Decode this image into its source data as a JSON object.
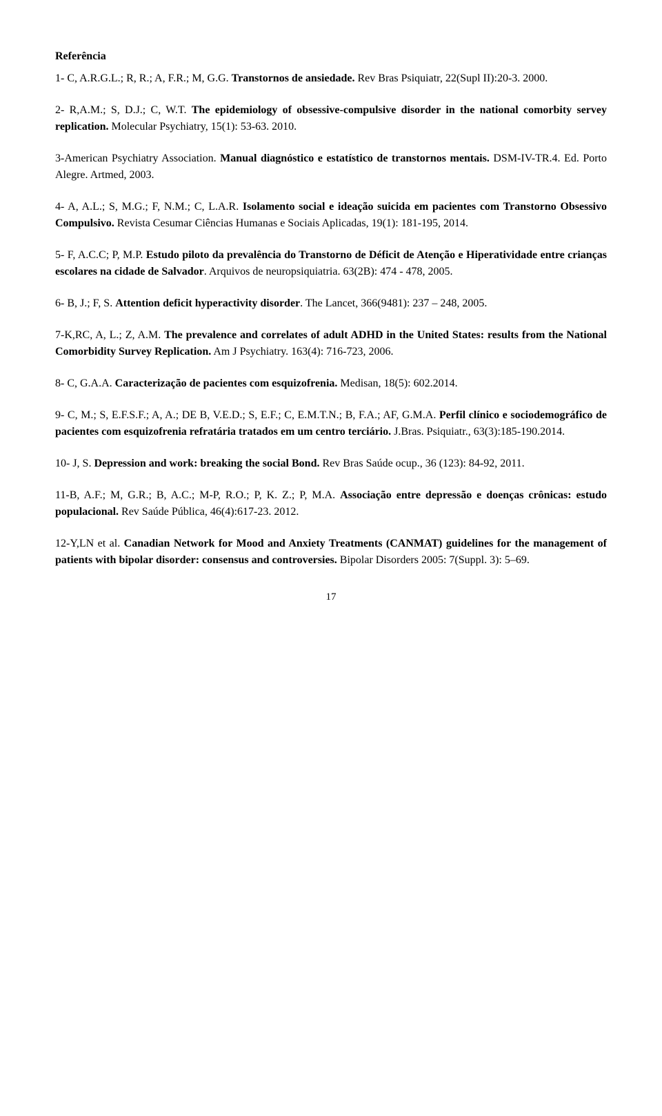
{
  "heading": "Referência",
  "refs": [
    {
      "pre": "1- C, A.R.G.L.; R, R.; A, F.R.; M, G.G. ",
      "title": "Transtornos de ansiedade. ",
      "post": "Rev Bras Psiquiatr, 22(Supl II):20-3. 2000."
    },
    {
      "pre": "2- R,A.M.; S, D.J.; C, W.T. ",
      "title": "The epidemiology of obsessive-compulsive disorder in the national comorbity servey replication. ",
      "post": "Molecular Psychiatry, 15(1): 53-63. 2010."
    },
    {
      "pre": "3-American Psychiatry Association. ",
      "title": "Manual diagnóstico e estatístico de transtornos mentais. ",
      "post": "DSM-IV-TR.4. Ed. Porto Alegre. Artmed, 2003."
    },
    {
      "pre": "4- A, A.L.; S, M.G.; F, N.M.; C, L.A.R. ",
      "title": "Isolamento social e ideação suicida em pacientes com Transtorno Obsessivo Compulsivo. ",
      "post": "Revista Cesumar Ciências Humanas e Sociais Aplicadas, 19(1): 181-195, 2014."
    },
    {
      "pre": "5- F, A.C.C; P, M.P. ",
      "title": "Estudo piloto da prevalência do Transtorno de Déficit de Atenção e Hiperatividade entre crianças escolares na cidade de Salvador",
      "post": ". Arquivos de neuropsiquiatria. 63(2B): 474 - 478, 2005."
    },
    {
      "pre": "6- B, J.; F, S. ",
      "title": "Attention deficit hyperactivity disorder",
      "post": ". The Lancet, 366(9481): 237 – 248, 2005."
    },
    {
      "pre": "7-K,RC, A, L.; Z, A.M. ",
      "title": "The prevalence and correlates of adult ADHD in the United States: results from the National Comorbidity Survey Replication.",
      "post": " Am J Psychiatry. 163(4): 716-723, 2006."
    },
    {
      "pre": "8- C, G.A.A. ",
      "title": "Caracterização de pacientes com esquizofrenia. ",
      "post": "Medisan, 18(5): 602.2014."
    },
    {
      "pre": "9- C, M.; S, E.F.S.F.; A, A.; DE B, V.E.D.; S, E.F.; C, E.M.T.N.; B, F.A.; AF, G.M.A. ",
      "title": "Perfil clínico e sociodemográfico de pacientes com esquizofrenia refratária tratados em um centro terciário. ",
      "post": "J.Bras. Psiquiatr., 63(3):185-190.2014."
    },
    {
      "pre": "10- J, S. ",
      "title": "Depression and work: breaking the social Bond. ",
      "post": "Rev Bras Saúde ocup., 36 (123): 84-92, 2011."
    },
    {
      "pre": "11-B, A.F.; M, G.R.; B, A.C.; M-P, R.O.; P, K. Z.; P, M.A. ",
      "title": "Associação entre depressão e doenças crônicas: estudo populacional. ",
      "post": "Rev Saúde Pública, 46(4):617-23. 2012."
    },
    {
      "pre": "12-Y,LN et al. ",
      "title": "Canadian Network for Mood and Anxiety Treatments (CANMAT) guidelines for the management of patients with bipolar disorder: consensus and controversies. ",
      "post": "Bipolar Disorders 2005: 7(Suppl. 3): 5–69."
    }
  ],
  "page_number": "17"
}
